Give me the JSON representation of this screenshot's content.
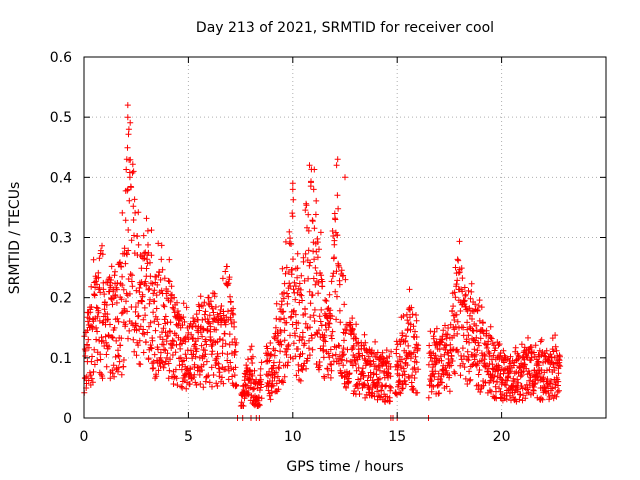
{
  "chart_data": {
    "type": "scatter",
    "title": "Day 213 of 2021, SRMTID for receiver cool",
    "xlabel": "GPS time / hours",
    "ylabel": "SRMTID / TECUs",
    "xlim": [
      0,
      25
    ],
    "ylim": [
      0,
      0.6
    ],
    "xticks": [
      0,
      5,
      10,
      15,
      20
    ],
    "yticks": [
      0,
      0.1,
      0.2,
      0.3,
      0.4,
      0.5,
      0.6
    ],
    "xtick_labels": [
      "0",
      "5",
      "10",
      "15",
      "20"
    ],
    "ytick_labels": [
      "0",
      "0.1",
      "0.2",
      "0.3",
      "0.4",
      "0.5",
      "0.6"
    ],
    "grid": true,
    "marker": "+",
    "series_color": "#ff0000",
    "envelope": {
      "x": [
        0,
        0.3,
        0.7,
        1,
        1.4,
        1.8,
        2,
        2.2,
        2.5,
        2.8,
        3,
        3.4,
        3.8,
        4.2,
        4.6,
        5,
        5.5,
        6,
        6.5,
        7,
        7.3,
        7.5,
        7.8,
        8,
        8.3,
        8.5,
        8.8,
        9,
        9.3,
        9.6,
        9.8,
        10,
        10.3,
        10.6,
        10.9,
        11.2,
        11.5,
        11.8,
        12,
        12.3,
        12.6,
        13,
        13.4,
        13.8,
        14.2,
        14.6,
        14.8,
        15,
        15.3,
        15.6,
        16,
        16.5,
        17,
        17.5,
        18,
        18.3,
        18.6,
        19,
        19.5,
        20,
        20.5,
        21,
        21.5,
        22,
        22.5,
        22.8
      ],
      "y": [
        0.09,
        0.15,
        0.19,
        0.17,
        0.18,
        0.2,
        0.3,
        0.35,
        0.23,
        0.2,
        0.25,
        0.18,
        0.2,
        0.16,
        0.14,
        0.11,
        0.14,
        0.15,
        0.13,
        0.18,
        0.08,
        0.03,
        0.06,
        0.08,
        0.04,
        0.06,
        0.08,
        0.09,
        0.13,
        0.17,
        0.22,
        0.26,
        0.16,
        0.22,
        0.3,
        0.24,
        0.15,
        0.14,
        0.27,
        0.2,
        0.13,
        0.1,
        0.09,
        0.08,
        0.08,
        0.07,
        0.1,
        0.1,
        0.12,
        0.14,
        0.1,
        0.09,
        0.1,
        0.11,
        0.2,
        0.15,
        0.16,
        0.12,
        0.1,
        0.08,
        0.07,
        0.08,
        0.09,
        0.08,
        0.09,
        0.09
      ]
    },
    "gaps": [
      [
        7.3,
        7.5
      ],
      [
        8.5,
        8.7
      ],
      [
        13.2,
        13.25
      ],
      [
        14.7,
        14.9
      ],
      [
        16.0,
        16.5
      ]
    ],
    "zero_points": [
      7.35,
      7.6,
      8.0,
      8.25,
      8.4,
      14.7,
      14.8,
      15.0,
      16.5
    ],
    "notable_points": [
      {
        "x": 2.1,
        "y": 0.52
      },
      {
        "x": 2.1,
        "y": 0.5
      },
      {
        "x": 2.15,
        "y": 0.48
      },
      {
        "x": 2.05,
        "y": 0.43
      },
      {
        "x": 2.2,
        "y": 0.4
      },
      {
        "x": 2.1,
        "y": 0.38
      },
      {
        "x": 10.0,
        "y": 0.39
      },
      {
        "x": 10.0,
        "y": 0.38
      },
      {
        "x": 10.8,
        "y": 0.42
      },
      {
        "x": 11.0,
        "y": 0.38
      },
      {
        "x": 12.15,
        "y": 0.43
      },
      {
        "x": 12.1,
        "y": 0.42
      },
      {
        "x": 12.5,
        "y": 0.4
      }
    ]
  }
}
